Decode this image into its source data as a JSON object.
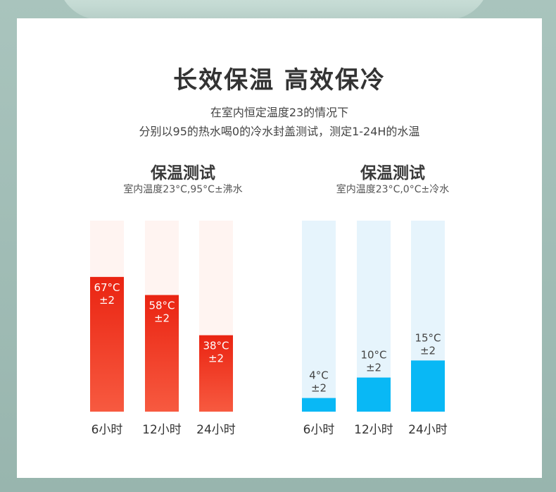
{
  "title": "长效保温 高效保冷",
  "subtitle_line1": "在室内恒定温度23的情况下",
  "subtitle_line2": "分别以95的热水喝0的冷水封盖测试，测定1-24H的水温",
  "chart_data": [
    {
      "type": "bar",
      "title": "保温测试",
      "subtitle": "室内温度23°C,95°C±沸水",
      "categories": [
        "6小时",
        "12小时",
        "24小时"
      ],
      "values": [
        67,
        58,
        38
      ],
      "labels": [
        "67°C",
        "58°C",
        "38°C"
      ],
      "tolerance": "±2",
      "ylim": [
        0,
        95
      ],
      "bar_color": "#f0321c",
      "track_color": "#fff4f1"
    },
    {
      "type": "bar",
      "title": "保温测试",
      "subtitle": "室内温度23°C,0°C±冷水",
      "categories": [
        "6小时",
        "12小时",
        "24小时"
      ],
      "values": [
        4,
        10,
        15
      ],
      "labels": [
        "4°C",
        "10°C",
        "15°C"
      ],
      "tolerance": "±2",
      "ylim": [
        0,
        56
      ],
      "bar_color": "#09b8f5",
      "track_color": "#e6f4fc"
    }
  ]
}
